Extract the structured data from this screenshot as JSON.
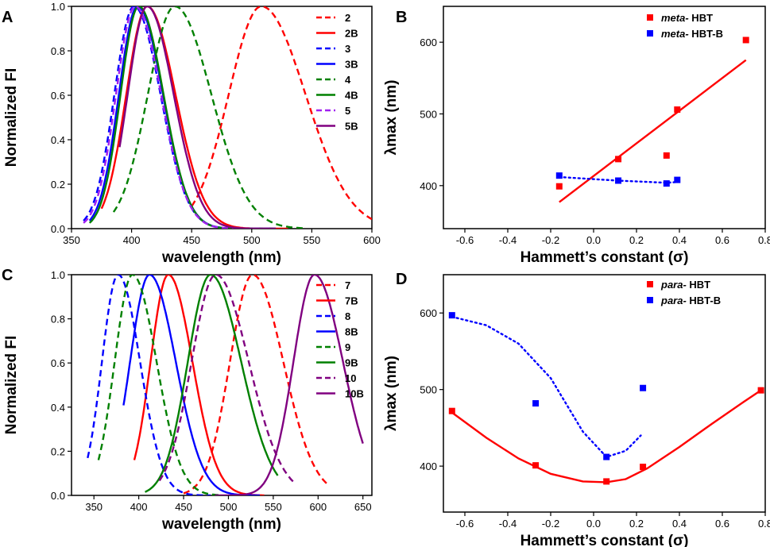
{
  "chart_data": [
    {
      "panel": "A",
      "type": "line",
      "xlabel": "wavelength (nm)",
      "ylabel": "Normalized FI",
      "xlim": [
        350,
        600
      ],
      "ylim": [
        0,
        1.0
      ],
      "xticks": [
        350,
        400,
        450,
        500,
        550,
        600
      ],
      "yticks": [
        0.0,
        0.2,
        0.4,
        0.6,
        0.8,
        1.0
      ],
      "series": [
        {
          "name": "2",
          "color": "#ff0000",
          "dash": true,
          "peak": 508,
          "fwhm": 75,
          "start": 450,
          "end": 600
        },
        {
          "name": "2B",
          "color": "#ff0000",
          "dash": false,
          "peak": 413,
          "fwhm": 48,
          "start": 375,
          "end": 530
        },
        {
          "name": "3",
          "color": "#0000ff",
          "dash": true,
          "peak": 402,
          "fwhm": 45,
          "start": 360,
          "end": 520
        },
        {
          "name": "3B",
          "color": "#0000ff",
          "dash": false,
          "peak": 405,
          "fwhm": 43,
          "start": 365,
          "end": 520
        },
        {
          "name": "4",
          "color": "#008000",
          "dash": true,
          "peak": 436,
          "fwhm": 62,
          "start": 385,
          "end": 545
        },
        {
          "name": "4B",
          "color": "#008000",
          "dash": false,
          "peak": 406,
          "fwhm": 42,
          "start": 365,
          "end": 520
        },
        {
          "name": "5",
          "color": "#a020f0",
          "dash": true,
          "peak": 403,
          "fwhm": 44,
          "start": 360,
          "end": 520
        },
        {
          "name": "5B",
          "color": "#800080",
          "dash": false,
          "peak": 413,
          "fwhm": 45,
          "start": 390,
          "end": 520
        }
      ]
    },
    {
      "panel": "B",
      "type": "scatter",
      "xlabel": "Hammett’s constant (σ)",
      "ylabel": "λmax (nm)",
      "xlim": [
        -0.7,
        0.8
      ],
      "ylim": [
        340,
        650
      ],
      "xticks": [
        -0.6,
        -0.4,
        -0.2,
        0.0,
        0.2,
        0.4,
        0.6,
        0.8
      ],
      "yticks": [
        400,
        500,
        600
      ],
      "series": [
        {
          "name": "meta- HBT",
          "prefix": "meta-",
          "suffix": " HBT",
          "color": "#ff0000",
          "x": [
            -0.16,
            0.115,
            0.34,
            0.39,
            0.71
          ],
          "y": [
            399,
            437,
            442,
            506,
            603
          ],
          "fit": {
            "style": "solid",
            "x": [
              -0.16,
              0.71
            ],
            "y": [
              377,
              575
            ]
          }
        },
        {
          "name": "meta- HBT-B",
          "prefix": "meta-",
          "suffix": " HBT-B",
          "color": "#0000ff",
          "x": [
            -0.16,
            0.115,
            0.34,
            0.39
          ],
          "y": [
            414,
            407,
            403,
            408
          ],
          "fit": {
            "style": "dotted",
            "x": [
              -0.16,
              0.115,
              0.34,
              0.39
            ],
            "y": [
              412,
              407,
              404,
              405
            ]
          }
        }
      ]
    },
    {
      "panel": "C",
      "type": "line",
      "xlabel": "wavelength (nm)",
      "ylabel": "Normalized FI",
      "xlim": [
        325,
        660
      ],
      "ylim": [
        0,
        1.0
      ],
      "xticks": [
        350,
        400,
        450,
        500,
        550,
        600,
        650
      ],
      "yticks": [
        0.0,
        0.2,
        0.4,
        0.6,
        0.8,
        1.0
      ],
      "series": [
        {
          "name": "7",
          "color": "#ff0000",
          "dash": true,
          "peak": 527,
          "fwhm": 70,
          "start": 450,
          "end": 612
        },
        {
          "name": "7B",
          "color": "#ff0000",
          "dash": false,
          "peak": 433,
          "fwhm": 55,
          "start": 395,
          "end": 540
        },
        {
          "name": "8",
          "color": "#0000ff",
          "dash": true,
          "peak": 377,
          "fwhm": 50,
          "start": 343,
          "end": 480
        },
        {
          "name": "8B",
          "color": "#0000ff",
          "dash": false,
          "peak": 412,
          "fwhm": 60,
          "start": 383,
          "end": 535
        },
        {
          "name": "9",
          "color": "#008000",
          "dash": true,
          "peak": 393,
          "fwhm": 55,
          "start": 355,
          "end": 490
        },
        {
          "name": "9B",
          "color": "#008000",
          "dash": false,
          "peak": 480,
          "fwhm": 70,
          "start": 407,
          "end": 555
        },
        {
          "name": "10",
          "color": "#800080",
          "dash": true,
          "peak": 486,
          "fwhm": 75,
          "start": 423,
          "end": 572
        },
        {
          "name": "10B",
          "color": "#800080",
          "dash": false,
          "peak": 596,
          "fwhm": 65,
          "start": 485,
          "end": 650
        }
      ]
    },
    {
      "panel": "D",
      "type": "scatter",
      "xlabel": "Hammett’s constant (σ)",
      "ylabel": "λmax (nm)",
      "xlim": [
        -0.7,
        0.8
      ],
      "ylim": [
        340,
        650
      ],
      "xticks": [
        -0.6,
        -0.4,
        -0.2,
        0.0,
        0.2,
        0.4,
        0.6,
        0.8
      ],
      "yticks": [
        400,
        500,
        600
      ],
      "series": [
        {
          "name": "para- HBT",
          "prefix": "para-",
          "suffix": " HBT",
          "color": "#ff0000",
          "x": [
            -0.66,
            -0.27,
            0.06,
            0.23,
            0.78
          ],
          "y": [
            472,
            401,
            380,
            399,
            499
          ],
          "fit": {
            "style": "solid",
            "x": [
              -0.66,
              -0.5,
              -0.35,
              -0.2,
              -0.05,
              0.06,
              0.15,
              0.25,
              0.4,
              0.55,
              0.7,
              0.78
            ],
            "y": [
              470,
              437,
              410,
              390,
              380,
              379,
              383,
              397,
              425,
              455,
              484,
              499
            ]
          }
        },
        {
          "name": "para- HBT-B",
          "prefix": "para-",
          "suffix": " HBT-B",
          "color": "#0000ff",
          "x": [
            -0.66,
            -0.27,
            0.06,
            0.23
          ],
          "y": [
            597,
            482,
            412,
            502
          ],
          "fit": {
            "style": "dotted",
            "x": [
              -0.66,
              -0.5,
              -0.35,
              -0.2,
              -0.05,
              0.06,
              0.15,
              0.22
            ],
            "y": [
              595,
              584,
              560,
              515,
              445,
              412,
              420,
              440
            ]
          }
        }
      ]
    }
  ]
}
